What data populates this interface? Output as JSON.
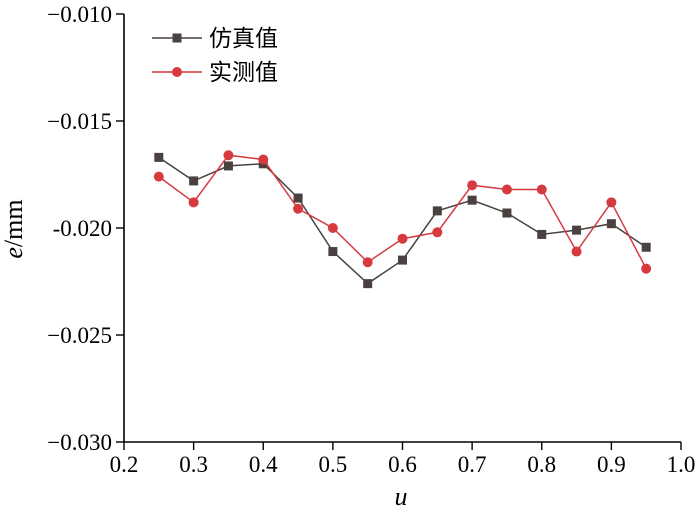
{
  "chart_data": {
    "type": "line",
    "xlabel": "u",
    "ylabel": "e/mm",
    "ylabel_var": "e",
    "ylabel_unit": "/mm",
    "xlim": [
      0.2,
      1.0
    ],
    "ylim": [
      -0.03,
      -0.01
    ],
    "xticks": [
      "0.2",
      "0.3",
      "0.4",
      "0.5",
      "0.6",
      "0.7",
      "0.8",
      "0.9",
      "1.0"
    ],
    "yticks": [
      "−0.010",
      "−0.015",
      "-0.020",
      "−0.025",
      "−0.030"
    ],
    "grid": false,
    "legend_position": "top-left",
    "x": [
      0.25,
      0.3,
      0.35,
      0.4,
      0.45,
      0.5,
      0.55,
      0.6,
      0.65,
      0.7,
      0.75,
      0.8,
      0.85,
      0.9,
      0.95
    ],
    "series": [
      {
        "name": "仿真值",
        "color": "#4a4141",
        "marker": "square",
        "values": [
          -0.0167,
          -0.0178,
          -0.0171,
          -0.017,
          -0.0186,
          -0.0211,
          -0.0226,
          -0.0215,
          -0.0192,
          -0.0187,
          -0.0193,
          -0.0203,
          -0.0201,
          -0.0198,
          -0.0209
        ]
      },
      {
        "name": "实测值",
        "color": "#d63a3f",
        "marker": "circle",
        "values": [
          -0.0176,
          -0.0188,
          -0.0166,
          -0.0168,
          -0.0191,
          -0.02,
          -0.0216,
          -0.0205,
          -0.0202,
          -0.018,
          -0.0182,
          -0.0182,
          -0.0211,
          -0.0188,
          -0.0219
        ]
      }
    ]
  }
}
